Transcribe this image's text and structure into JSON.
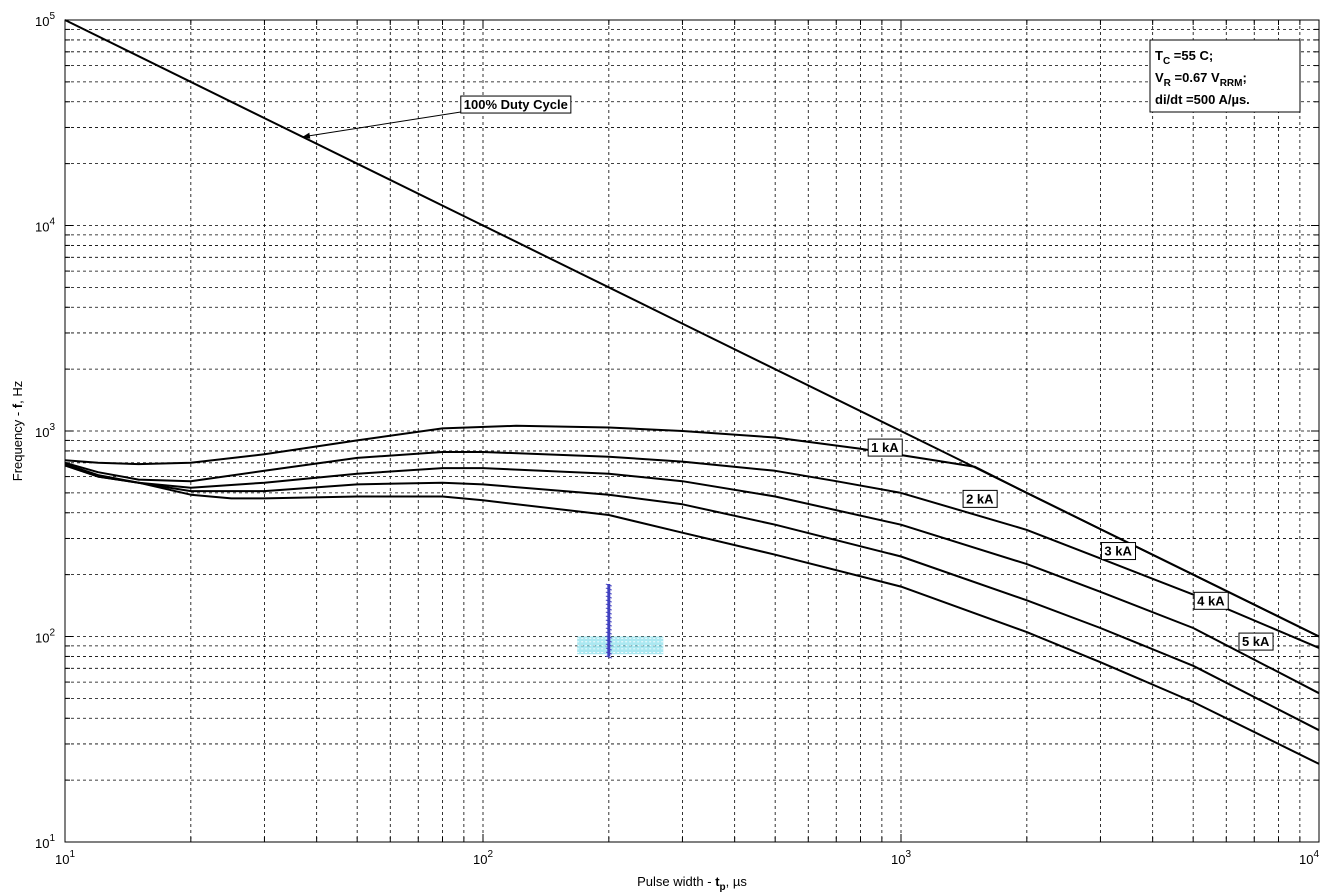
{
  "chart_data": {
    "type": "line",
    "title": "",
    "xscale": "log",
    "yscale": "log",
    "xlim": [
      10,
      10000
    ],
    "ylim": [
      10,
      100000
    ],
    "grid": true,
    "x_tick_mantissa": "10",
    "x_tick_exponents": [
      "1",
      "2",
      "3",
      "4"
    ],
    "y_tick_mantissa": "10",
    "y_tick_exponents": [
      "1",
      "2",
      "3",
      "4",
      "5"
    ],
    "xlabel": {
      "prefix": "Pulse width - ",
      "var": "t",
      "sub": "p",
      "suffix": ", µs"
    },
    "ylabel": {
      "prefix": "Frequency - ",
      "var": "f",
      "suffix": ", Hz"
    },
    "conditions": {
      "line1": {
        "a": "T",
        "a_sub": "C",
        "b": " =55 C;"
      },
      "line2": {
        "a": "V",
        "a_sub": "R",
        "b": " =0.67 V",
        "b_sub": "RRM",
        "c": ";"
      },
      "line3": "di/dt =500 A/µs."
    },
    "series": [
      {
        "name": "100% Duty Cycle",
        "x": [
          10,
          30,
          100,
          300,
          1000,
          3000,
          10000
        ],
        "y": [
          100000,
          33300,
          10000,
          3330,
          1000,
          333,
          100
        ]
      },
      {
        "name": "1 kA",
        "x": [
          10,
          12,
          15,
          20,
          30,
          50,
          80,
          120,
          200,
          300,
          500,
          800,
          1200,
          1500,
          2000,
          3000,
          5000,
          10000
        ],
        "y": [
          720,
          700,
          690,
          700,
          770,
          900,
          1030,
          1060,
          1040,
          1000,
          930,
          820,
          720,
          670,
          500,
          333,
          200,
          100
        ]
      },
      {
        "name": "2 kA",
        "x": [
          10,
          12,
          15,
          20,
          30,
          50,
          80,
          100,
          200,
          300,
          500,
          700,
          1000,
          2000,
          3000,
          5000,
          10000
        ],
        "y": [
          700,
          630,
          580,
          570,
          640,
          740,
          790,
          790,
          750,
          710,
          640,
          570,
          500,
          330,
          240,
          160,
          88
        ]
      },
      {
        "name": "3 kA",
        "x": [
          10,
          12,
          15,
          20,
          30,
          50,
          80,
          100,
          200,
          300,
          500,
          1000,
          2000,
          3000,
          5000,
          10000
        ],
        "y": [
          690,
          610,
          560,
          530,
          560,
          620,
          660,
          660,
          620,
          570,
          480,
          350,
          225,
          165,
          110,
          53
        ]
      },
      {
        "name": "4 kA",
        "x": [
          10,
          12,
          15,
          20,
          30,
          50,
          80,
          100,
          200,
          300,
          500,
          1000,
          2000,
          3000,
          5000,
          10000
        ],
        "y": [
          680,
          600,
          560,
          510,
          510,
          550,
          560,
          550,
          490,
          440,
          350,
          245,
          150,
          110,
          72,
          35
        ]
      },
      {
        "name": "5 kA",
        "x": [
          10,
          12,
          15,
          20,
          25,
          30,
          50,
          80,
          100,
          200,
          300,
          500,
          1000,
          2000,
          3000,
          5000,
          10000
        ],
        "y": [
          680,
          600,
          560,
          490,
          470,
          470,
          480,
          480,
          460,
          390,
          320,
          250,
          175,
          105,
          75,
          48,
          24
        ]
      }
    ],
    "labels": [
      {
        "text": "100% Duty Cycle",
        "x": 88,
        "y": 39000,
        "arrow_to_x": 37,
        "arrow_to_y": 27000
      },
      {
        "text": "1 kA",
        "x": 830,
        "y": 835
      },
      {
        "text": "2 kA",
        "x": 1400,
        "y": 470
      },
      {
        "text": "3 kA",
        "x": 3000,
        "y": 262
      },
      {
        "text": "4 kA",
        "x": 5000,
        "y": 150
      },
      {
        "text": "5 kA",
        "x": 6400,
        "y": 95
      }
    ],
    "marker": {
      "x": 200,
      "y_top": 180,
      "y_bottom": 80,
      "band_x": [
        168,
        270
      ],
      "band_y": [
        82,
        100
      ],
      "colors": {
        "stem": "#4040c0",
        "band": "#66d6e6"
      }
    }
  }
}
